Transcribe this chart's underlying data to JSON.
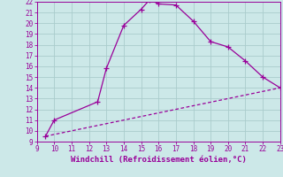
{
  "xlabel": "Windchill (Refroidissement éolien,°C)",
  "xlim": [
    9,
    23
  ],
  "ylim": [
    9,
    22
  ],
  "xticks": [
    9,
    10,
    11,
    12,
    13,
    14,
    15,
    16,
    17,
    18,
    19,
    20,
    21,
    22,
    23
  ],
  "yticks": [
    9,
    10,
    11,
    12,
    13,
    14,
    15,
    16,
    17,
    18,
    19,
    20,
    21,
    22
  ],
  "curve_x": [
    9.5,
    10,
    12.5,
    13,
    14,
    15,
    15.5,
    16,
    17,
    18,
    19,
    20,
    21,
    22,
    23
  ],
  "curve_y": [
    9.5,
    11.0,
    12.7,
    15.8,
    19.8,
    21.3,
    22.2,
    21.8,
    21.7,
    20.2,
    18.3,
    17.8,
    16.5,
    15.0,
    14.0
  ],
  "line_x": [
    9.5,
    23
  ],
  "line_y": [
    9.5,
    14.0
  ],
  "color": "#990099",
  "bg_color": "#cce8e8",
  "grid_color": "#aacccc",
  "marker": "+",
  "markersize": 4,
  "linewidth": 0.9,
  "tick_fontsize": 5.5,
  "label_fontsize": 6.5
}
